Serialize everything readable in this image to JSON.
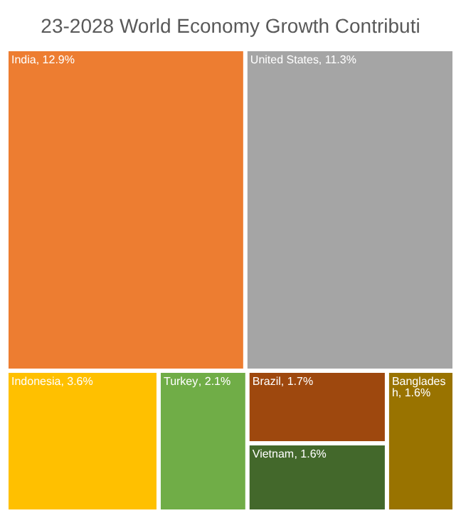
{
  "chart_data": {
    "type": "other",
    "title": "23-2028 World Economy Growth Contributi",
    "categories": [
      "India",
      "United States",
      "Indonesia",
      "Turkey",
      "Brazil",
      "Bangladesh",
      "Vietnam"
    ],
    "values": [
      12.9,
      11.3,
      3.6,
      2.1,
      1.7,
      1.6,
      1.6
    ],
    "value_labels": [
      ", 12.9%",
      ", 11.3%",
      ", 3.6%",
      ", 2.1%",
      ", 1.7%",
      ", 1.6%",
      ", 1.6%"
    ],
    "colors": [
      "#ed7d31",
      "#a5a5a5",
      "#ffc000",
      "#70ad47",
      "#9e480e",
      "#997300",
      "#43682b"
    ]
  }
}
